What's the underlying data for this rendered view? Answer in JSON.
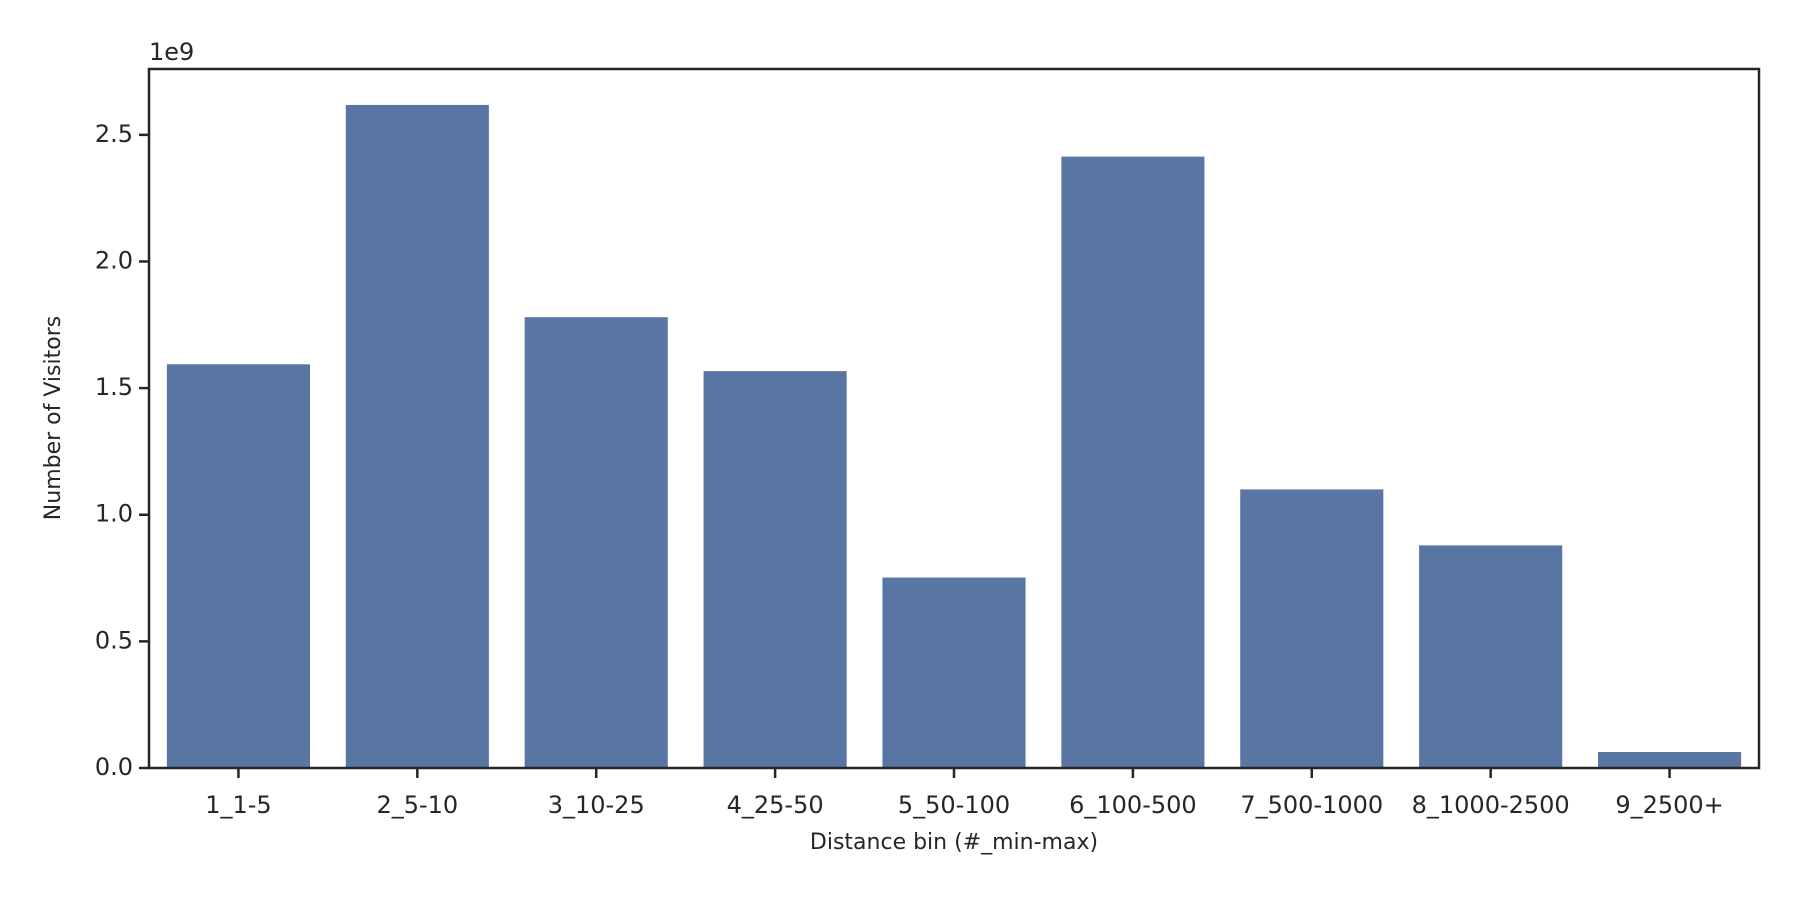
{
  "chart_data": {
    "type": "bar",
    "x_label": "Distance bin (#_min-max)",
    "y_label": "Number of Visitors",
    "y_offset_label": "1e9",
    "categories": [
      "1_1-5",
      "2_5-10",
      "3_10-25",
      "4_25-50",
      "5_50-100",
      "6_100-500",
      "7_500-1000",
      "8_1000-2500",
      "9_2500+"
    ],
    "values": [
      1.594,
      2.618,
      1.78,
      1.567,
      0.752,
      2.414,
      1.1,
      0.879,
      0.063
    ],
    "color": "#5975a4",
    "ylim": [
      0,
      2.76
    ],
    "yticks": [
      {
        "value": 0,
        "label": "0.0"
      },
      0.5,
      {
        "value": 1,
        "label": "1.0"
      },
      1.5,
      {
        "value": 2,
        "label": "2.0"
      },
      2.5
    ],
    "grid": false
  }
}
